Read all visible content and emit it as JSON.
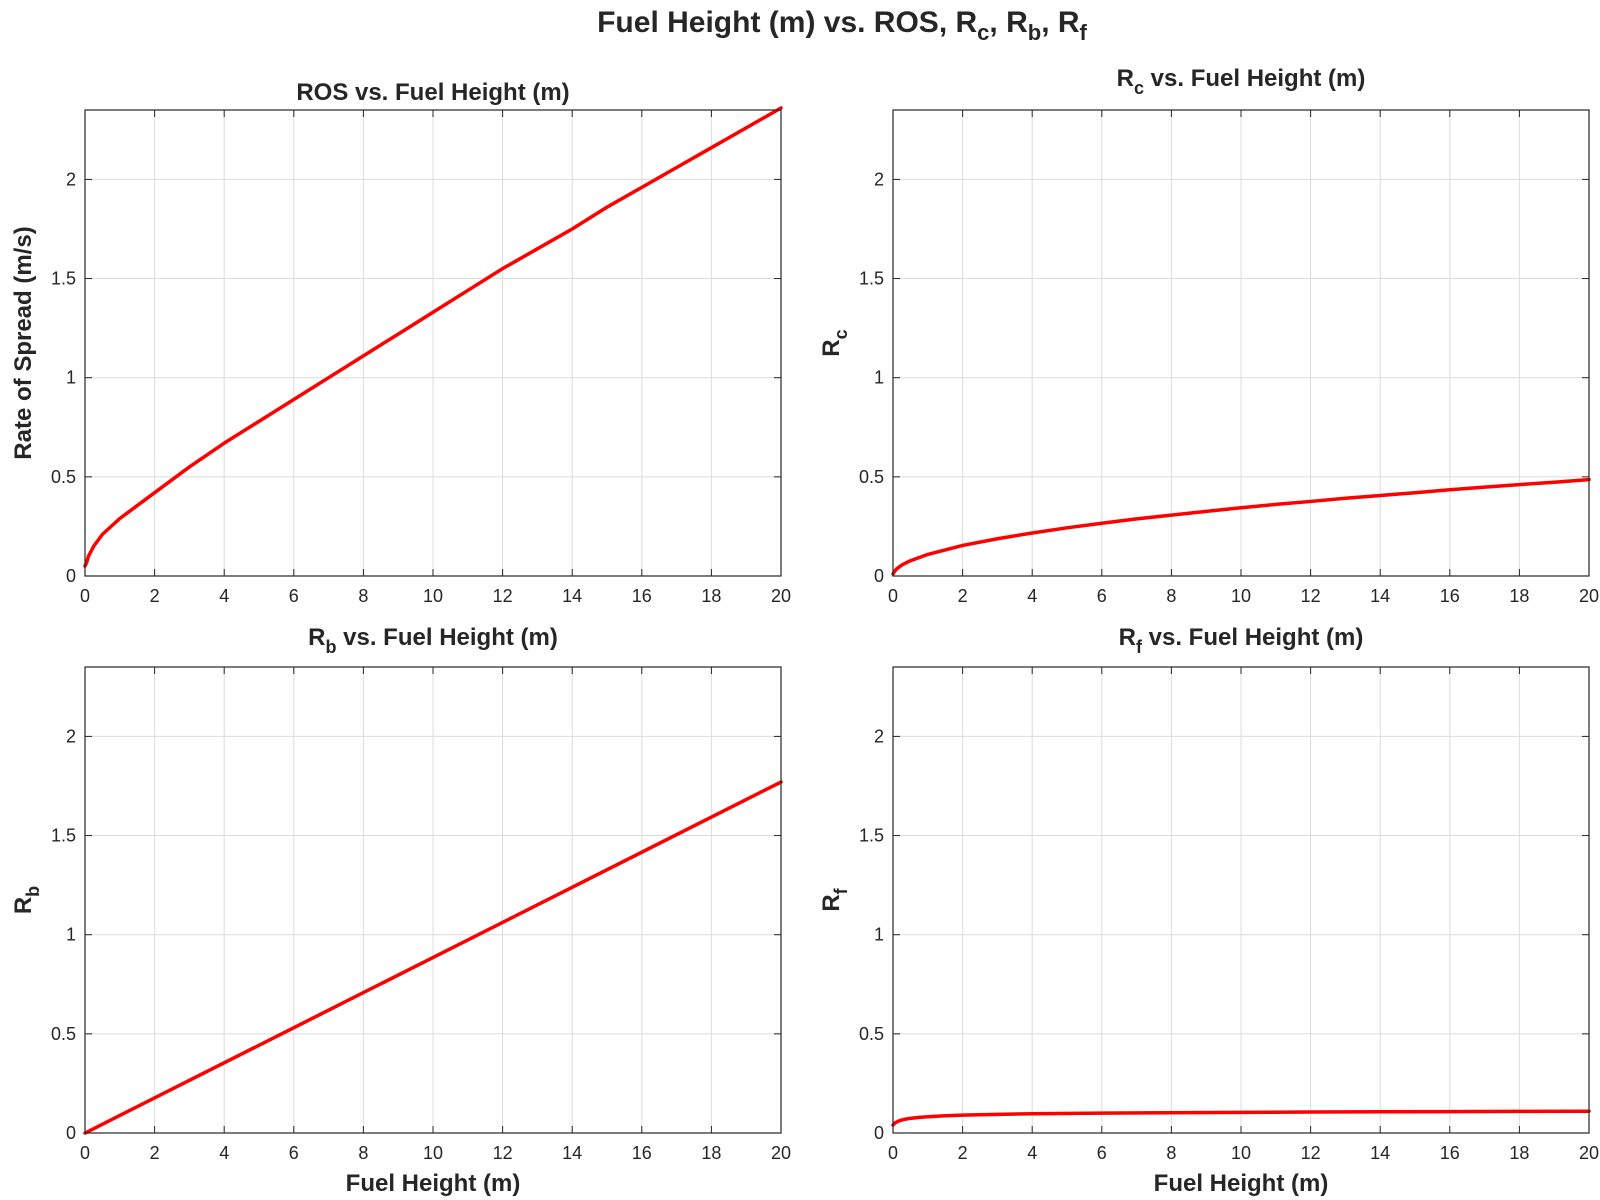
{
  "figure": {
    "title_main": "Fuel Height (m) vs. ROS, R",
    "title_parts": [
      {
        "text": "Fuel Height (m) vs. ROS, R",
        "sub": "c"
      },
      {
        "text": ", R",
        "sub": "b"
      },
      {
        "text": ", R",
        "sub": "f"
      }
    ]
  },
  "chart_data": [
    {
      "type": "line",
      "title": "ROS vs. Fuel Height (m)",
      "title_base": "ROS vs. Fuel Height (m)",
      "title_sub": "",
      "title_tail": "",
      "xlabel": "",
      "ylabel": "Rate of Spread (m/s)",
      "ylabel_sub": "",
      "xlim": [
        0,
        20
      ],
      "ylim": [
        0,
        2.35
      ],
      "xticks": [
        0,
        2,
        4,
        6,
        8,
        10,
        12,
        14,
        16,
        18,
        20
      ],
      "yticks": [
        0,
        0.5,
        1,
        1.5,
        2
      ],
      "ytick_labels": [
        "0",
        "0.5",
        "1",
        "1.5",
        "2"
      ],
      "grid": true,
      "color": "#ff0000",
      "x": [
        0,
        0.05,
        0.1,
        0.25,
        0.5,
        1,
        2,
        3,
        4,
        5,
        6,
        7,
        8,
        9,
        10,
        11,
        12,
        13,
        14,
        15,
        16,
        17,
        18,
        19,
        20
      ],
      "y": [
        0.05,
        0.07,
        0.1,
        0.15,
        0.21,
        0.29,
        0.42,
        0.55,
        0.67,
        0.78,
        0.89,
        1.0,
        1.11,
        1.22,
        1.33,
        1.44,
        1.55,
        1.65,
        1.75,
        1.86,
        1.96,
        2.06,
        2.16,
        2.26,
        2.36
      ]
    },
    {
      "type": "line",
      "title": "Rc vs. Fuel Height (m)",
      "title_base": "R",
      "title_sub": "c",
      "title_tail": " vs. Fuel Height (m)",
      "xlabel": "",
      "ylabel": "R",
      "ylabel_sub": "c",
      "xlim": [
        0,
        20
      ],
      "ylim": [
        0,
        2.35
      ],
      "xticks": [
        0,
        2,
        4,
        6,
        8,
        10,
        12,
        14,
        16,
        18,
        20
      ],
      "yticks": [
        0,
        0.5,
        1,
        1.5,
        2
      ],
      "ytick_labels": [
        "0",
        "0.5",
        "1",
        "1.5",
        "2"
      ],
      "grid": true,
      "color": "#ff0000",
      "x": [
        0,
        0.05,
        0.1,
        0.25,
        0.5,
        1,
        2,
        3,
        4,
        5,
        6,
        7,
        8,
        9,
        10,
        11,
        12,
        13,
        14,
        15,
        16,
        17,
        18,
        19,
        20
      ],
      "y": [
        0.01,
        0.025,
        0.035,
        0.055,
        0.077,
        0.109,
        0.154,
        0.188,
        0.217,
        0.243,
        0.266,
        0.288,
        0.307,
        0.326,
        0.344,
        0.361,
        0.376,
        0.392,
        0.406,
        0.42,
        0.435,
        0.448,
        0.461,
        0.473,
        0.486
      ]
    },
    {
      "type": "line",
      "title": "Rb vs. Fuel Height (m)",
      "title_base": "R",
      "title_sub": "b",
      "title_tail": " vs. Fuel Height (m)",
      "xlabel": "Fuel Height (m)",
      "ylabel": "R",
      "ylabel_sub": "b",
      "xlim": [
        0,
        20
      ],
      "ylim": [
        0,
        2.35
      ],
      "xticks": [
        0,
        2,
        4,
        6,
        8,
        10,
        12,
        14,
        16,
        18,
        20
      ],
      "yticks": [
        0,
        0.5,
        1,
        1.5,
        2
      ],
      "ytick_labels": [
        "0",
        "0.5",
        "1",
        "1.5",
        "2"
      ],
      "grid": true,
      "color": "#ff0000",
      "x": [
        0,
        20
      ],
      "y": [
        0,
        1.77
      ]
    },
    {
      "type": "line",
      "title": "Rf vs. Fuel Height (m)",
      "title_base": "R",
      "title_sub": "f",
      "title_tail": " vs. Fuel Height (m)",
      "xlabel": "Fuel Height (m)",
      "ylabel": "R",
      "ylabel_sub": "f",
      "xlim": [
        0,
        20
      ],
      "ylim": [
        0,
        2.35
      ],
      "xticks": [
        0,
        2,
        4,
        6,
        8,
        10,
        12,
        14,
        16,
        18,
        20
      ],
      "yticks": [
        0,
        0.5,
        1,
        1.5,
        2
      ],
      "ytick_labels": [
        "0",
        "0.5",
        "1",
        "1.5",
        "2"
      ],
      "grid": true,
      "color": "#ff0000",
      "x": [
        0,
        0.05,
        0.1,
        0.2,
        0.3,
        0.5,
        0.75,
        1,
        1.5,
        2,
        3,
        4,
        6,
        8,
        10,
        12,
        14,
        16,
        18,
        20
      ],
      "y": [
        0.04,
        0.05,
        0.055,
        0.063,
        0.068,
        0.074,
        0.079,
        0.082,
        0.087,
        0.09,
        0.094,
        0.097,
        0.1,
        0.102,
        0.104,
        0.106,
        0.107,
        0.108,
        0.109,
        0.11
      ]
    }
  ]
}
